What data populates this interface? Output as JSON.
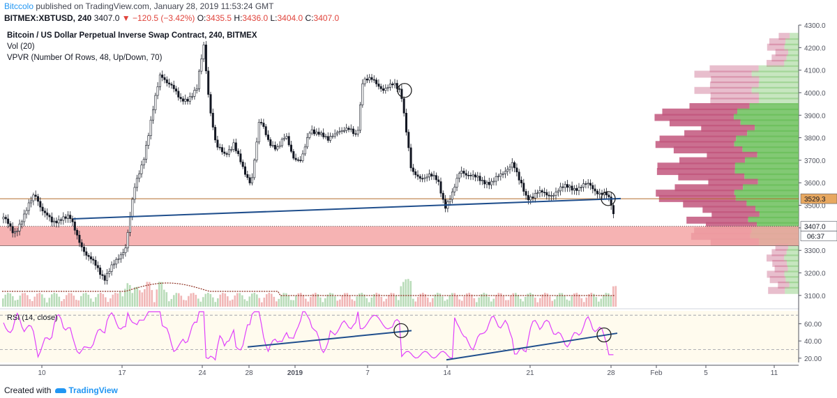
{
  "header": {
    "user": "Bitccolo",
    "published_text": "published on TradingView.com, January 28, 2019 11:53:24 GMT",
    "symbol": "BITMEX:XBTUSD, 240",
    "price": "3407.0",
    "change": "▼ −120.5 (−3.42%)",
    "ohlc": {
      "o": "3435.5",
      "h": "3436.0",
      "l": "3404.0",
      "c": "3407.0"
    }
  },
  "chart_title": "Bitcoin / US Dollar Perpetual Inverse Swap Contract, 240, BITMEX",
  "indicators": [
    "Vol (20)",
    "VPVR (Number Of Rows, 48, Up/Down, 70)"
  ],
  "rsi_label": "RSI (14, close)",
  "price_badges": {
    "level": "3529.3",
    "last": "3407.0",
    "countdown": "06:37"
  },
  "footer": {
    "created_with": "Created with",
    "brand": "TradingView"
  },
  "colors": {
    "up": "#7fbf7f",
    "down": "#e57b7b",
    "candle": "#131722",
    "trendline": "#1f4e8c",
    "level": "#b26b2a",
    "zone": "#f4a6a6",
    "rsi": "#e040fb",
    "vpvr_up": "#6cbf5c",
    "vpvr_down": "#c2567d"
  },
  "chart_data": [
    {
      "type": "line",
      "name": "BITMEX:XBTUSD 240 price",
      "ylim": [
        3050,
        4300
      ],
      "y_ticks": [
        "4300.0",
        "4200.0",
        "4100.0",
        "4000.0",
        "3900.0",
        "3800.0",
        "3700.0",
        "3600.0",
        "3500.0",
        "3400.0",
        "3300.0",
        "3200.0",
        "3100.0"
      ],
      "x_ticks": [
        "10",
        "17",
        "24",
        "28",
        "2019",
        "7",
        "14",
        "21",
        "28",
        "Feb",
        "5",
        "11"
      ],
      "close_path": [
        [
          5,
          3440
        ],
        [
          20,
          3380
        ],
        [
          35,
          3450
        ],
        [
          50,
          3560
        ],
        [
          62,
          3470
        ],
        [
          75,
          3420
        ],
        [
          88,
          3450
        ],
        [
          100,
          3440
        ],
        [
          112,
          3360
        ],
        [
          125,
          3270
        ],
        [
          138,
          3230
        ],
        [
          150,
          3180
        ],
        [
          165,
          3240
        ],
        [
          180,
          3320
        ],
        [
          192,
          3560
        ],
        [
          205,
          3700
        ],
        [
          218,
          3900
        ],
        [
          230,
          4080
        ],
        [
          245,
          4040
        ],
        [
          258,
          3960
        ],
        [
          270,
          3980
        ],
        [
          282,
          4010
        ],
        [
          292,
          4210
        ],
        [
          300,
          3960
        ],
        [
          310,
          3760
        ],
        [
          322,
          3720
        ],
        [
          335,
          3780
        ],
        [
          350,
          3640
        ],
        [
          360,
          3600
        ],
        [
          372,
          3880
        ],
        [
          385,
          3780
        ],
        [
          398,
          3760
        ],
        [
          410,
          3800
        ],
        [
          420,
          3720
        ],
        [
          432,
          3700
        ],
        [
          445,
          3830
        ],
        [
          458,
          3830
        ],
        [
          470,
          3780
        ],
        [
          485,
          3840
        ],
        [
          500,
          3830
        ],
        [
          512,
          3810
        ],
        [
          520,
          4060
        ],
        [
          535,
          4050
        ],
        [
          550,
          4020
        ],
        [
          565,
          4030
        ],
        [
          575,
          4010
        ],
        [
          582,
          3850
        ],
        [
          590,
          3640
        ],
        [
          600,
          3620
        ],
        [
          615,
          3640
        ],
        [
          628,
          3600
        ],
        [
          638,
          3500
        ],
        [
          650,
          3560
        ],
        [
          660,
          3650
        ],
        [
          675,
          3640
        ],
        [
          690,
          3600
        ],
        [
          705,
          3610
        ],
        [
          720,
          3630
        ],
        [
          735,
          3700
        ],
        [
          745,
          3600
        ],
        [
          755,
          3530
        ],
        [
          770,
          3560
        ],
        [
          785,
          3540
        ],
        [
          800,
          3570
        ],
        [
          815,
          3580
        ],
        [
          830,
          3580
        ],
        [
          845,
          3590
        ],
        [
          858,
          3560
        ],
        [
          870,
          3540
        ],
        [
          878,
          3490
        ],
        [
          882,
          3407
        ]
      ],
      "marked_levels": {
        "horizontal_level": 3529.3,
        "zone_top": 3407,
        "zone_bottom": 3320
      },
      "trendline": {
        "from": [
          105,
          3440
        ],
        "to": [
          890,
          3530
        ]
      }
    },
    {
      "type": "line",
      "name": "RSI (14, close)",
      "ylim": [
        15,
        75
      ],
      "y_ticks": [
        "60.00",
        "40.00",
        "20.00"
      ],
      "bands": [
        70,
        30
      ]
    }
  ]
}
